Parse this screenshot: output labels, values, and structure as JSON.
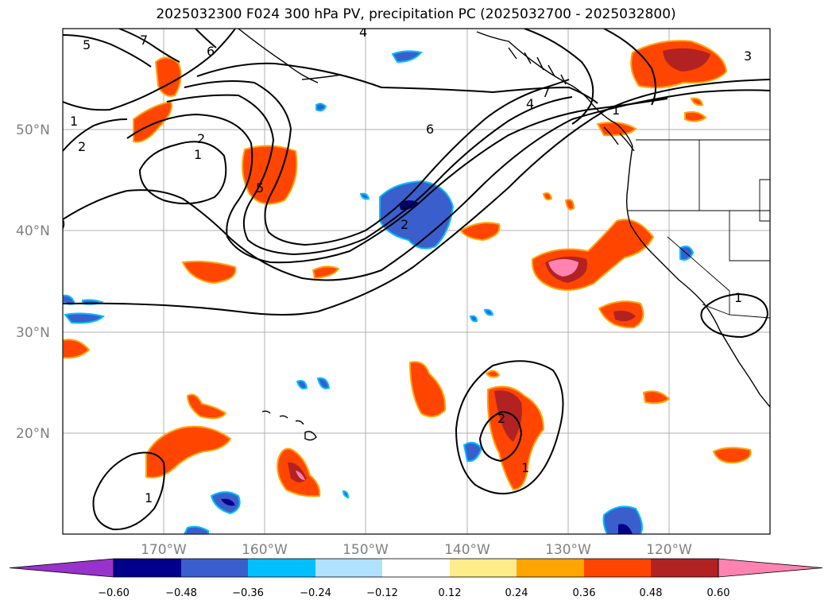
{
  "title": "2025032300 F024 300 hPa PV, precipitation PC (2025032700 - 2025032800)",
  "lat_labels": [
    "50°N",
    "40°N",
    "30°N",
    "20°N"
  ],
  "lon_labels": [
    "170°W",
    "160°W",
    "150°W",
    "140°W",
    "130°W",
    "120°W"
  ],
  "contour_labels": [
    "5",
    "7",
    "6",
    "4",
    "1",
    "2",
    "2",
    "1",
    "5",
    "6",
    "2",
    "2",
    "4",
    "7",
    "1",
    "3",
    "1",
    "2",
    "1",
    "1"
  ],
  "colorbar": {
    "colors": [
      "#9932cc",
      "#00008b",
      "#3a5fcd",
      "#00bfff",
      "#b0e2ff",
      "#ffffff",
      "#ffec8b",
      "#ffa500",
      "#ff4500",
      "#b22222",
      "#ff83b0"
    ],
    "tick_labels": [
      "−0.60",
      "−0.48",
      "−0.36",
      "−0.24",
      "−0.12",
      "0.12",
      "0.24",
      "0.36",
      "0.48",
      "0.60"
    ]
  }
}
